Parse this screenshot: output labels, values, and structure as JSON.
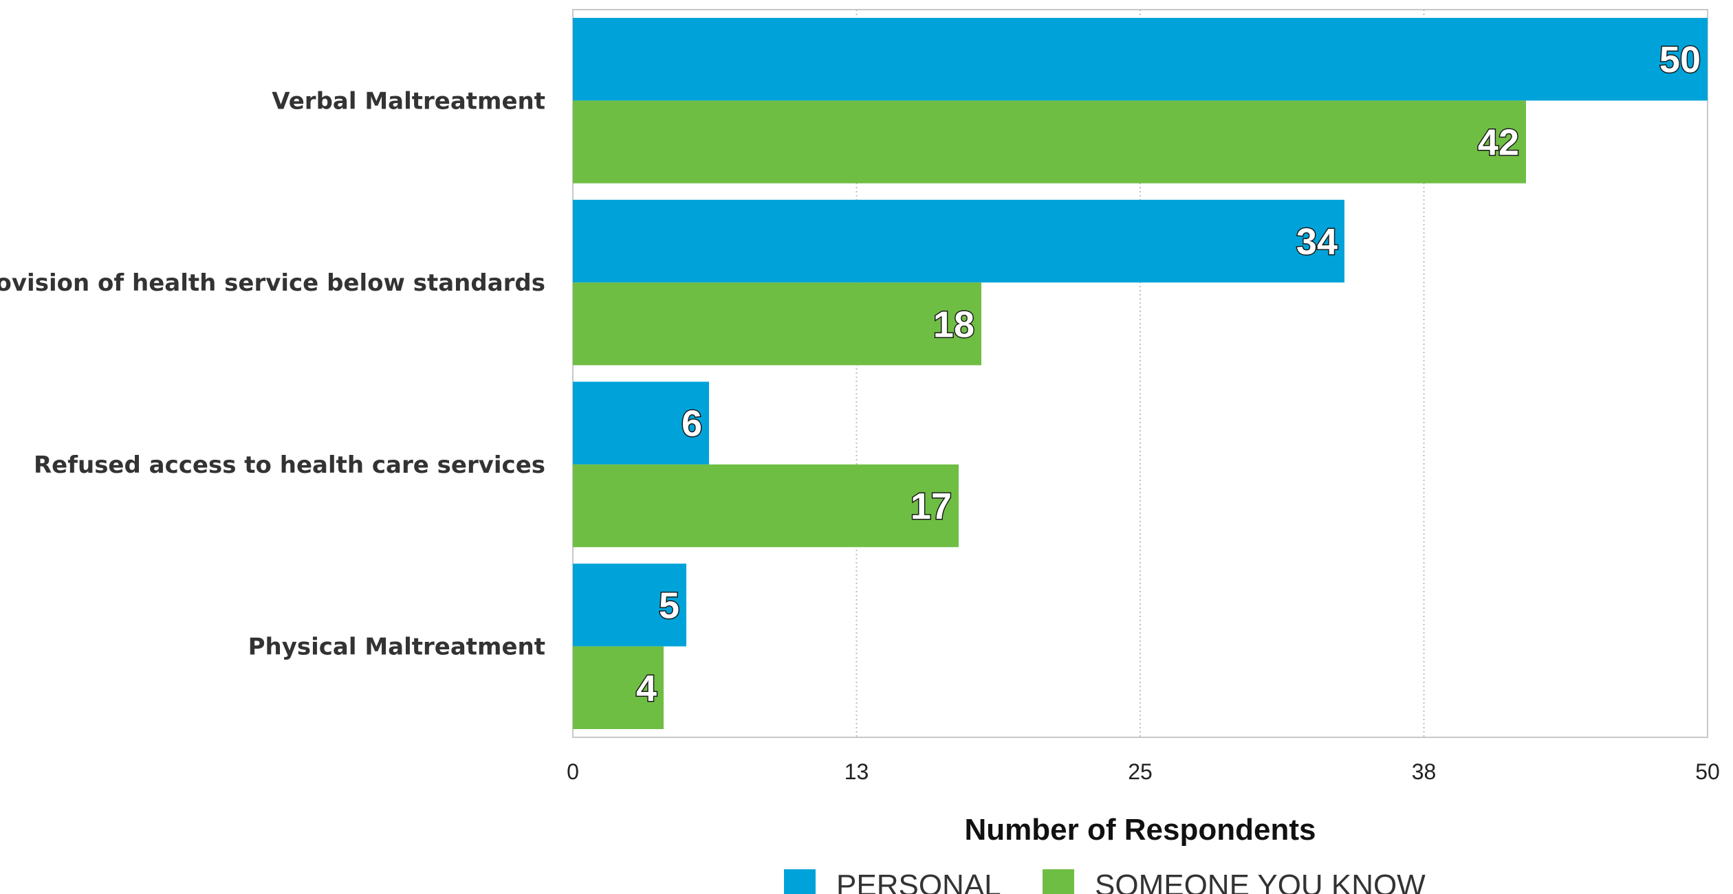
{
  "chart_data": {
    "type": "bar",
    "orientation": "horizontal",
    "categories": [
      "Verbal Maltreatment",
      "Provision of health service below standards",
      "Refused access to health care services",
      "Physical Maltreatment"
    ],
    "series": [
      {
        "name": "PERSONAL",
        "color": "#00a3d9",
        "values": [
          50,
          34,
          6,
          5
        ]
      },
      {
        "name": "SOMEONE YOU KNOW",
        "color": "#6fbe44",
        "values": [
          42,
          18,
          17,
          4
        ]
      }
    ],
    "xlabel": "Number of Respondents",
    "ylabel": "",
    "xlim": [
      0,
      50
    ],
    "xticks": [
      "0",
      "13",
      "25",
      "38",
      "50"
    ],
    "xtick_values": [
      0,
      12.5,
      25,
      37.5,
      50
    ],
    "grid": "vertical dotted",
    "legend_position": "bottom",
    "data_labels": true
  }
}
